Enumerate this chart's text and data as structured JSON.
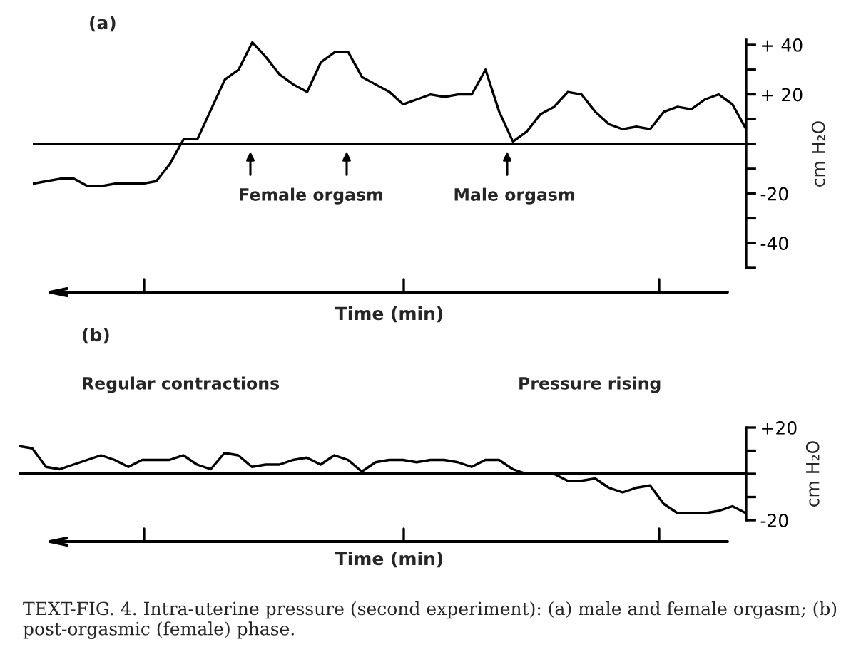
{
  "chart_data": [
    {
      "type": "line",
      "title": "(a)",
      "xlabel": "Time (min)",
      "ylabel": "cm H₂O",
      "color": "#000000",
      "grid": false,
      "legend": false,
      "categories": [
        null,
        null,
        null,
        null,
        null,
        null,
        null,
        null,
        null,
        null,
        null,
        null,
        null,
        null,
        null,
        null,
        null,
        null,
        null,
        null,
        null,
        null,
        null,
        null,
        null,
        null,
        null,
        null,
        null,
        null,
        null,
        null,
        null,
        null,
        null,
        null,
        null,
        null,
        null,
        null,
        null,
        null,
        null,
        null,
        null,
        null,
        null,
        null,
        null,
        null,
        null,
        null,
        null
      ],
      "values": [
        -16,
        -15,
        -14,
        -14,
        -17,
        -17,
        -16,
        -16,
        -16,
        -15,
        -8,
        2,
        2,
        14,
        26,
        30,
        41,
        35,
        28,
        24,
        21,
        33,
        37,
        37,
        27,
        24,
        21,
        16,
        18,
        20,
        19,
        20,
        20,
        30,
        13,
        1,
        5,
        12,
        15,
        21,
        20,
        13,
        8,
        6,
        7,
        6,
        13,
        15,
        14,
        18,
        20,
        16,
        6
      ],
      "ylim": [
        -50,
        42
      ],
      "yticks": [
        {
          "value": 40,
          "label": "+ 40"
        },
        {
          "value": 30,
          "label": null
        },
        {
          "value": 20,
          "label": "+ 20"
        },
        {
          "value": 10,
          "label": null
        },
        {
          "value": 0,
          "label": null
        },
        {
          "value": -10,
          "label": null
        },
        {
          "value": -20,
          "label": "-20"
        },
        {
          "value": -30,
          "label": null
        },
        {
          "value": -40,
          "label": "-40"
        },
        {
          "value": -50,
          "label": null
        }
      ],
      "ref_lines": [
        {
          "axis": "y",
          "value": 0,
          "color": "#000000"
        }
      ],
      "annotations": [
        "Female orgasm",
        "Male orgasm"
      ]
    },
    {
      "type": "line",
      "title": "(b)",
      "xlabel": "Time (min)",
      "ylabel": "cm H₂O",
      "color": "#000000",
      "grid": false,
      "legend": false,
      "categories": [
        null,
        null,
        null,
        null,
        null,
        null,
        null,
        null,
        null,
        null,
        null,
        null,
        null,
        null,
        null,
        null,
        null,
        null,
        null,
        null,
        null,
        null,
        null,
        null,
        null,
        null,
        null,
        null,
        null,
        null,
        null,
        null,
        null,
        null,
        null,
        null,
        null,
        null,
        null,
        null,
        null,
        null,
        null,
        null,
        null,
        null,
        null,
        null,
        null,
        null,
        null,
        null,
        null,
        null
      ],
      "values": [
        12,
        11,
        3,
        2,
        4,
        6,
        8,
        6,
        3,
        6,
        6,
        6,
        8,
        4,
        2,
        9,
        8,
        3,
        4,
        4,
        6,
        7,
        4,
        8,
        6,
        1,
        5,
        6,
        6,
        5,
        6,
        6,
        5,
        3,
        6,
        6,
        2,
        0,
        0,
        0,
        -3,
        -3,
        -2,
        -6,
        -8,
        -6,
        -5,
        -13,
        -17,
        -17,
        -17,
        -16,
        -14,
        -17
      ],
      "ylim": [
        -20,
        20
      ],
      "yticks": [
        {
          "value": 20,
          "label": "+20"
        },
        {
          "value": 10,
          "label": null
        },
        {
          "value": 0,
          "label": null
        },
        {
          "value": -10,
          "label": null
        },
        {
          "value": -20,
          "label": "-20"
        }
      ],
      "ref_lines": [
        {
          "axis": "y",
          "value": 0,
          "color": "#000000"
        }
      ],
      "annotations": [
        "Regular contractions",
        "Pressure rising",
        "TEXT-FIG. 4. Intra-uterine pressure (second experiment): (a) male and female orgasm; (b) post-orgasmic (female) phase."
      ]
    }
  ]
}
